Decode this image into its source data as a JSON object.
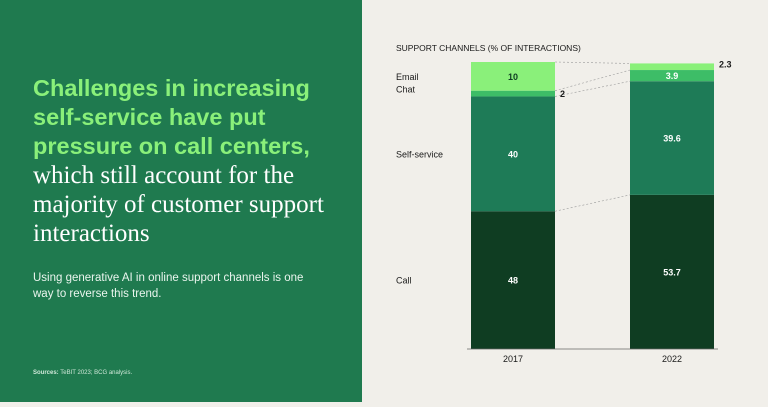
{
  "headline": {
    "emphasis": "Challenges in increasing self-service have put pressure on call centers,",
    "rest": "which still account for the majority of customer support interactions"
  },
  "subtext": "Using generative AI in online support channels is one way to reverse this trend.",
  "sources": {
    "label": "Sources:",
    "text": "TeBIT 2023; BCG analysis."
  },
  "colors": {
    "left_panel": "#1f7a4f",
    "headline_green": "#8af07a",
    "right_bg": "#f1efea",
    "email": "#8af07a",
    "chat": "#3dbd67",
    "self_service": "#1e7b57",
    "call": "#0f3d22"
  },
  "chart_data": {
    "type": "bar",
    "stacked": true,
    "title": "SUPPORT CHANNELS (% OF INTERACTIONS)",
    "categories": [
      "2017",
      "2022"
    ],
    "series": [
      {
        "name": "Call",
        "values": [
          48,
          53.7
        ],
        "labels": [
          "48",
          "53.7"
        ]
      },
      {
        "name": "Self-service",
        "values": [
          40,
          39.6
        ],
        "labels": [
          "40",
          "39.6"
        ]
      },
      {
        "name": "Chat",
        "values": [
          2,
          3.9
        ],
        "labels": [
          "2",
          "3.9"
        ]
      },
      {
        "name": "Email",
        "values": [
          10,
          2.3
        ],
        "labels": [
          "10",
          "2.3"
        ]
      }
    ],
    "ylim": [
      0,
      100
    ],
    "xlabel": "",
    "ylabel": ""
  }
}
